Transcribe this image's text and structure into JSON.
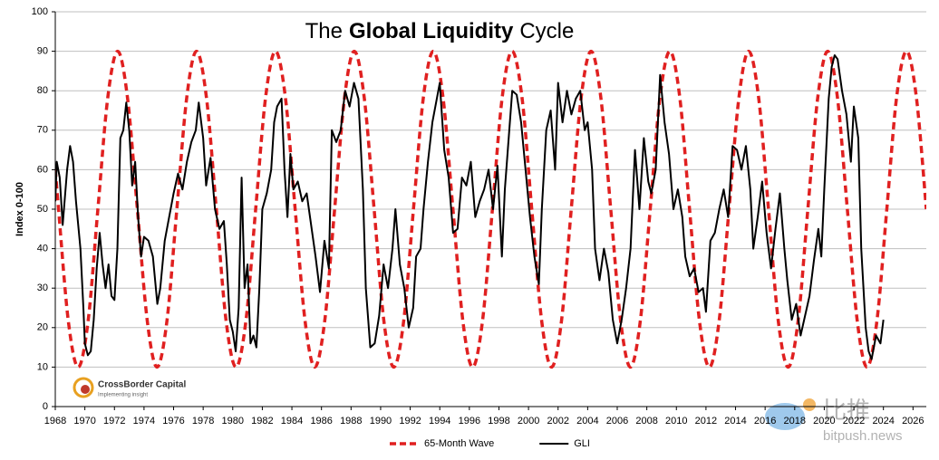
{
  "chart_data": {
    "type": "line",
    "title": [
      "The",
      "Global Liquidity",
      "Cycle"
    ],
    "y_label": "Index 0-100",
    "xlim": [
      1968,
      2026.9
    ],
    "xticks": [
      1968,
      1970,
      1972,
      1974,
      1976,
      1978,
      1980,
      1982,
      1984,
      1986,
      1988,
      1990,
      1992,
      1994,
      1996,
      1998,
      2000,
      2002,
      2004,
      2006,
      2008,
      2010,
      2012,
      2014,
      2016,
      2018,
      2020,
      2022,
      2024,
      2026
    ],
    "ylim": [
      0,
      100
    ],
    "yticks": [
      0,
      10,
      20,
      30,
      40,
      50,
      60,
      70,
      80,
      90,
      100
    ],
    "grid": true,
    "legend": "bottom",
    "logo": {
      "name": "CrossBorder Capital",
      "tagline": "Implementing insight"
    },
    "watermark": {
      "name": "比推",
      "site": "bitpush.news"
    },
    "series": [
      {
        "name": "65-Month Wave",
        "color": "#e02020",
        "dashed": true,
        "smooth": true,
        "x": [
          1968,
          1968.22,
          1968.88,
          1969.55,
          1970.22,
          1970.88,
          1971.55,
          1972.22,
          1972.88,
          1973.55,
          1974.22,
          1974.88,
          1975.55,
          1976.22,
          1976.89,
          1977.55,
          1978.22,
          1978.89,
          1979.55,
          1980.22,
          1980.89,
          1981.55,
          1982.22,
          1982.89,
          1983.56,
          1984.22,
          1984.89,
          1985.55,
          1986.22,
          1986.89,
          1987.56,
          1988.22,
          1988.89,
          1989.56,
          1990.22,
          1990.89,
          1991.56,
          1992.22,
          1992.89,
          1993.56,
          1994.22,
          1994.89,
          1995.56,
          1996.22,
          1996.89,
          1997.56,
          1998.22,
          1998.89,
          1999.56,
          2000.22,
          2000.89,
          2001.56,
          2002.23,
          2002.89,
          2003.56,
          2004.23,
          2004.89,
          2005.56,
          2006.23,
          2006.89,
          2007.56,
          2008.23,
          2008.89,
          2009.56,
          2010.23,
          2010.89,
          2011.56,
          2012.23,
          2012.89,
          2013.56,
          2014.23,
          2014.89,
          2015.56,
          2016.23,
          2016.89,
          2017.56,
          2018.23,
          2018.89,
          2019.56,
          2020.23,
          2020.89,
          2021.56,
          2022.23,
          2022.89,
          2023.56,
          2024.23,
          2024.89,
          2025.56,
          2026.23,
          2026.9
        ],
        "values": [
          60,
          50,
          21.7,
          10,
          21.7,
          50,
          78.3,
          90,
          78.3,
          50,
          21.7,
          10,
          21.7,
          50,
          78.3,
          90,
          78.3,
          50,
          21.7,
          10,
          21.7,
          50,
          78.3,
          90,
          78.3,
          50,
          21.7,
          10,
          21.7,
          50,
          78.3,
          90,
          78.3,
          50,
          21.7,
          10,
          21.7,
          50,
          78.3,
          90,
          78.3,
          50,
          21.7,
          10,
          21.7,
          50,
          78.3,
          90,
          78.3,
          50,
          21.7,
          10,
          21.7,
          50,
          78.3,
          90,
          78.3,
          50,
          21.7,
          10,
          21.7,
          50,
          78.3,
          90,
          78.3,
          50,
          21.7,
          10,
          21.7,
          50,
          78.3,
          90,
          78.3,
          50,
          21.7,
          10,
          21.7,
          50,
          78.3,
          90,
          78.3,
          50,
          21.7,
          10,
          21.7,
          50,
          78.3,
          90,
          78.3,
          50
        ]
      },
      {
        "name": "GLI",
        "color": "#000000",
        "dashed": false,
        "smooth": false,
        "x": [
          1968,
          1968.1,
          1968.3,
          1968.5,
          1968.8,
          1969.0,
          1969.2,
          1969.4,
          1969.7,
          1969.9,
          1970.0,
          1970.2,
          1970.4,
          1970.6,
          1970.8,
          1971.0,
          1971.2,
          1971.4,
          1971.6,
          1971.8,
          1972.0,
          1972.2,
          1972.4,
          1972.6,
          1972.8,
          1973.0,
          1973.2,
          1973.4,
          1973.6,
          1973.8,
          1974.0,
          1974.3,
          1974.6,
          1974.9,
          1975.1,
          1975.4,
          1975.7,
          1976.0,
          1976.3,
          1976.6,
          1976.9,
          1977.2,
          1977.5,
          1977.7,
          1978.0,
          1978.2,
          1978.5,
          1978.8,
          1979.1,
          1979.4,
          1979.6,
          1979.8,
          1980.0,
          1980.2,
          1980.4,
          1980.6,
          1980.8,
          1981.0,
          1981.2,
          1981.4,
          1981.6,
          1981.8,
          1982.0,
          1982.3,
          1982.6,
          1982.8,
          1983.0,
          1983.3,
          1983.5,
          1983.7,
          1983.9,
          1984.1,
          1984.4,
          1984.7,
          1985.0,
          1985.3,
          1985.6,
          1985.9,
          1986.2,
          1986.5,
          1986.7,
          1987.0,
          1987.3,
          1987.6,
          1987.9,
          1988.2,
          1988.5,
          1988.8,
          1989.0,
          1989.3,
          1989.6,
          1989.9,
          1990.2,
          1990.5,
          1990.8,
          1991.0,
          1991.3,
          1991.6,
          1991.9,
          1992.2,
          1992.4,
          1992.7,
          1992.9,
          1993.2,
          1993.5,
          1993.8,
          1994.0,
          1994.3,
          1994.6,
          1994.9,
          1995.2,
          1995.5,
          1995.8,
          1996.1,
          1996.4,
          1996.7,
          1997.0,
          1997.3,
          1997.6,
          1997.9,
          1998.2,
          1998.4,
          1998.7,
          1998.9,
          1999.2,
          1999.5,
          1999.8,
          2000.1,
          2000.4,
          2000.7,
          2000.9,
          2001.2,
          2001.5,
          2001.8,
          2002.0,
          2002.3,
          2002.6,
          2002.9,
          2003.2,
          2003.5,
          2003.8,
          2004.0,
          2004.3,
          2004.5,
          2004.8,
          2005.1,
          2005.4,
          2005.7,
          2006.0,
          2006.3,
          2006.6,
          2006.9,
          2007.2,
          2007.5,
          2007.8,
          2008.1,
          2008.3,
          2008.6,
          2008.9,
          2009.2,
          2009.5,
          2009.8,
          2010.1,
          2010.4,
          2010.6,
          2010.9,
          2011.2,
          2011.5,
          2011.8,
          2012.0,
          2012.3,
          2012.6,
          2012.9,
          2013.2,
          2013.5,
          2013.8,
          2014.1,
          2014.4,
          2014.7,
          2015.0,
          2015.2,
          2015.5,
          2015.8,
          2016.1,
          2016.4,
          2016.7,
          2017.0,
          2017.3,
          2017.5,
          2017.8,
          2018.1,
          2018.4,
          2018.7,
          2019.0,
          2019.3,
          2019.6,
          2019.8,
          2020.0,
          2020.3,
          2020.5,
          2020.7,
          2020.9,
          2021.2,
          2021.5,
          2021.8,
          2022.0,
          2022.3,
          2022.5,
          2022.8,
          2023.0,
          2023.2,
          2023.5,
          2023.8,
          2024.0
        ],
        "values": [
          52,
          62,
          58,
          46,
          60,
          66,
          62,
          52,
          40,
          25,
          16,
          13,
          14,
          22,
          35,
          44,
          36,
          30,
          36,
          28,
          27,
          40,
          68,
          70,
          77,
          70,
          56,
          62,
          48,
          38,
          43,
          42,
          38,
          26,
          30,
          42,
          48,
          54,
          59,
          55,
          62,
          67,
          70,
          77,
          68,
          56,
          63,
          50,
          45,
          47,
          36,
          22,
          19,
          14,
          25,
          58,
          30,
          36,
          16,
          18,
          15,
          30,
          50,
          54,
          60,
          72,
          76,
          78,
          60,
          48,
          64,
          55,
          57,
          52,
          54,
          46,
          38,
          29,
          42,
          35,
          70,
          67,
          70,
          80,
          76,
          82,
          78,
          55,
          30,
          15,
          16,
          23,
          36,
          30,
          40,
          50,
          36,
          30,
          20,
          25,
          38,
          40,
          50,
          62,
          72,
          78,
          82,
          65,
          58,
          44,
          45,
          58,
          56,
          62,
          48,
          52,
          55,
          60,
          50,
          61,
          38,
          55,
          70,
          80,
          79,
          72,
          60,
          48,
          38,
          31,
          50,
          70,
          75,
          60,
          82,
          72,
          80,
          74,
          78,
          80,
          70,
          72,
          60,
          40,
          32,
          40,
          34,
          22,
          16,
          22,
          30,
          40,
          65,
          50,
          68,
          57,
          54,
          60,
          84,
          72,
          64,
          50,
          55,
          48,
          38,
          33,
          35,
          29,
          30,
          24,
          42,
          44,
          50,
          55,
          48,
          66,
          65,
          60,
          66,
          55,
          40,
          48,
          57,
          44,
          35,
          45,
          54,
          40,
          32,
          22,
          26,
          18,
          23,
          28,
          37,
          45,
          38,
          55,
          78,
          86,
          89,
          88,
          80,
          74,
          62,
          76,
          68,
          40,
          20,
          14,
          12,
          18,
          16,
          22
        ]
      }
    ]
  }
}
